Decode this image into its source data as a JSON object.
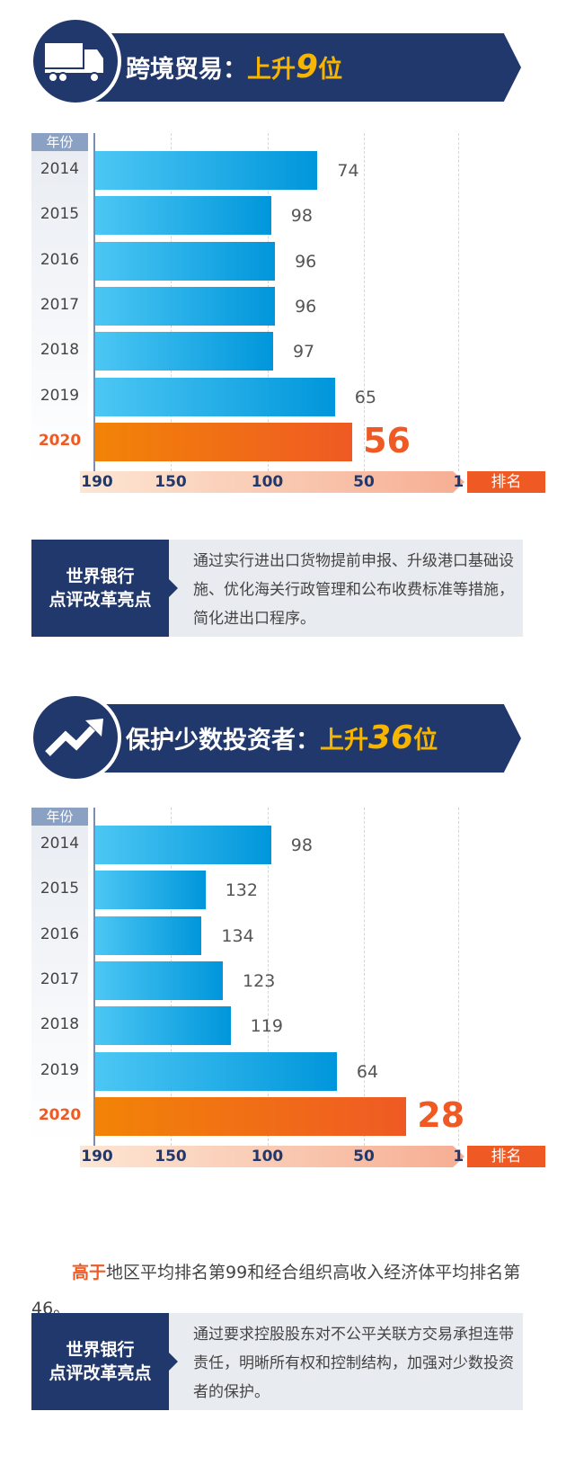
{
  "sections": [
    {
      "icon": "truck-icon",
      "title": "跨境贸易：",
      "rise_prefix": "上升",
      "rise_num": "9",
      "rise_suffix": "位",
      "callout": {
        "label_line1": "世界银行",
        "label_line2": "点评改革亮点",
        "text": "通过实行进出口货物提前申报、升级港口基础设施、优化海关行政管理和公布收费标准等措施，简化进出口程序。"
      }
    },
    {
      "icon": "trend-up-icon",
      "title": "保护少数投资者：",
      "rise_prefix": "上升",
      "rise_num": "36",
      "rise_suffix": "位",
      "note": {
        "highlight": "高于",
        "text": "地区平均排名第99和经合组织高收入经济体平均排名第46。"
      },
      "callout": {
        "label_line1": "世界银行",
        "label_line2": "点评改革亮点",
        "text": "通过要求控股股东对不公平关联方交易承担连带责任，明晰所有权和控制结构，加强对少数投资者的保护。"
      }
    }
  ],
  "chart_data": [
    {
      "type": "bar",
      "orientation": "horizontal",
      "title": "跨境贸易：上升9位",
      "category_header": "年份",
      "categories": [
        "2014",
        "2015",
        "2016",
        "2017",
        "2018",
        "2019",
        "2020"
      ],
      "values": [
        74,
        98,
        96,
        96,
        97,
        65,
        56
      ],
      "xlabel": "排名",
      "xlim": [
        190,
        1
      ],
      "xticks": [
        "190",
        "150",
        "100",
        "50",
        "1"
      ],
      "highlight": "2020",
      "colors": {
        "bar": "#0096db",
        "highlight": "#ef5a24"
      }
    },
    {
      "type": "bar",
      "orientation": "horizontal",
      "title": "保护少数投资者：上升36位",
      "category_header": "年份",
      "categories": [
        "2014",
        "2015",
        "2016",
        "2017",
        "2018",
        "2019",
        "2020"
      ],
      "values": [
        98,
        132,
        134,
        123,
        119,
        64,
        28
      ],
      "xlabel": "排名",
      "xlim": [
        190,
        1
      ],
      "xticks": [
        "190",
        "150",
        "100",
        "50",
        "1"
      ],
      "highlight": "2020",
      "colors": {
        "bar": "#0096db",
        "highlight": "#ef5a24"
      }
    }
  ]
}
